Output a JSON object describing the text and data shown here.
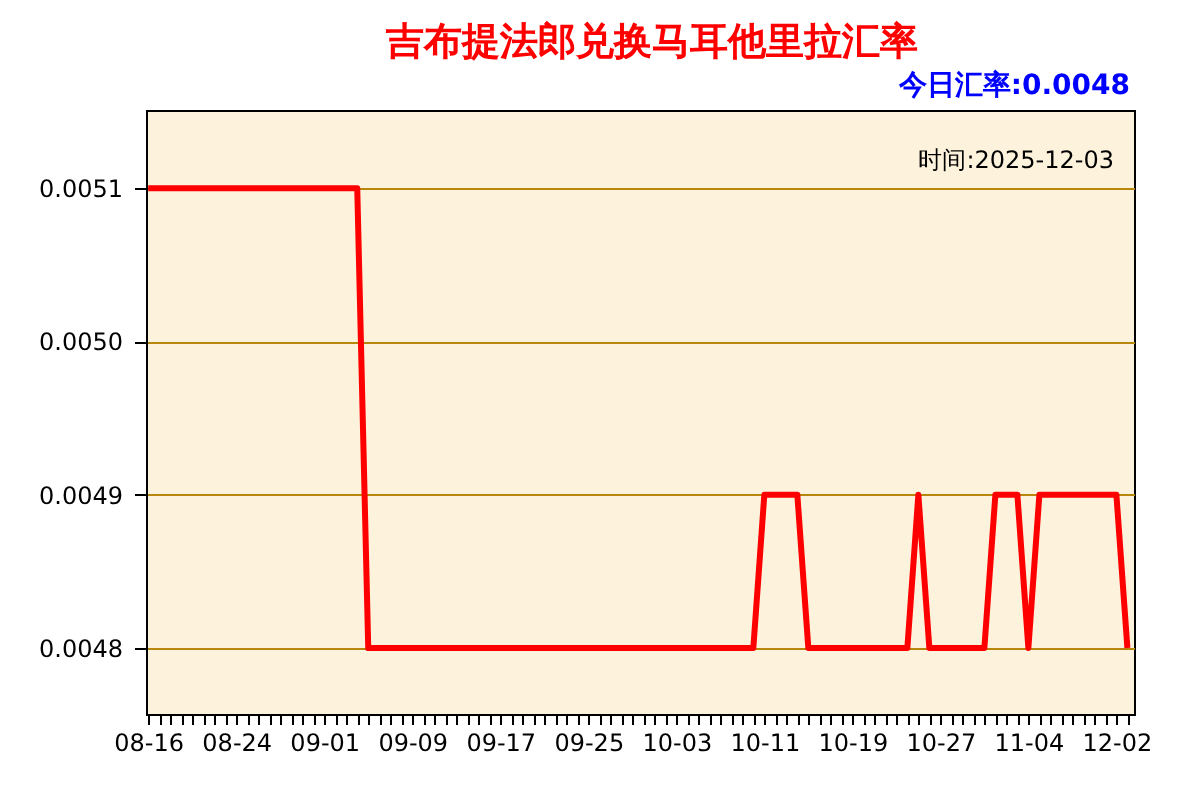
{
  "chart_data": {
    "type": "line",
    "title": "吉布提法郎兑换马耳他里拉汇率",
    "subtitle": "今日汇率:0.0048",
    "annotations": [
      "时间:2025-12-03"
    ],
    "categories": [
      "08-16",
      null,
      null,
      null,
      null,
      null,
      null,
      null,
      "08-24",
      null,
      null,
      null,
      null,
      null,
      null,
      null,
      "09-01",
      null,
      null,
      null,
      null,
      null,
      null,
      null,
      "09-09",
      null,
      null,
      null,
      null,
      null,
      null,
      null,
      "09-17",
      null,
      null,
      null,
      null,
      null,
      null,
      null,
      "09-25",
      null,
      null,
      null,
      null,
      null,
      null,
      null,
      "10-03",
      null,
      null,
      null,
      null,
      null,
      null,
      null,
      "10-11",
      null,
      null,
      null,
      null,
      null,
      null,
      null,
      "10-19",
      null,
      null,
      null,
      null,
      null,
      null,
      null,
      "10-27",
      null,
      null,
      null,
      null,
      null,
      null,
      null,
      "11-04",
      null,
      null,
      null,
      null,
      null,
      null,
      null,
      "12-02",
      null
    ],
    "series": [
      {
        "color": "#ff0000",
        "values": [
          0.0051,
          0.0051,
          0.0051,
          0.0051,
          0.0051,
          0.0051,
          0.0051,
          0.0051,
          0.0051,
          0.0051,
          0.0051,
          0.0051,
          0.0051,
          0.0051,
          0.0051,
          0.0051,
          0.0051,
          0.0051,
          0.0051,
          0.0051,
          0.0048,
          0.0048,
          0.0048,
          0.0048,
          0.0048,
          0.0048,
          0.0048,
          0.0048,
          0.0048,
          0.0048,
          0.0048,
          0.0048,
          0.0048,
          0.0048,
          0.0048,
          0.0048,
          0.0048,
          0.0048,
          0.0048,
          0.0048,
          0.0048,
          0.0048,
          0.0048,
          0.0048,
          0.0048,
          0.0048,
          0.0048,
          0.0048,
          0.0048,
          0.0048,
          0.0048,
          0.0048,
          0.0048,
          0.0048,
          0.0048,
          0.0048,
          0.0049,
          0.0049,
          0.0049,
          0.0049,
          0.0048,
          0.0048,
          0.0048,
          0.0048,
          0.0048,
          0.0048,
          0.0048,
          0.0048,
          0.0048,
          0.0048,
          0.0049,
          0.0048,
          0.0048,
          0.0048,
          0.0048,
          0.0048,
          0.0048,
          0.0049,
          0.0049,
          0.0049,
          0.0048,
          0.0049,
          0.0049,
          0.0049,
          0.0049,
          0.0049,
          0.0049,
          0.0049,
          0.0049,
          0.0048
        ]
      }
    ],
    "ylim": [
      0.004757,
      0.005151
    ],
    "yticks": [
      0.0048,
      0.0049,
      {
        "value": 0.005,
        "label": "0.0050"
      },
      0.0051
    ],
    "grid": "y",
    "marker": "none",
    "line_style": "solid"
  }
}
